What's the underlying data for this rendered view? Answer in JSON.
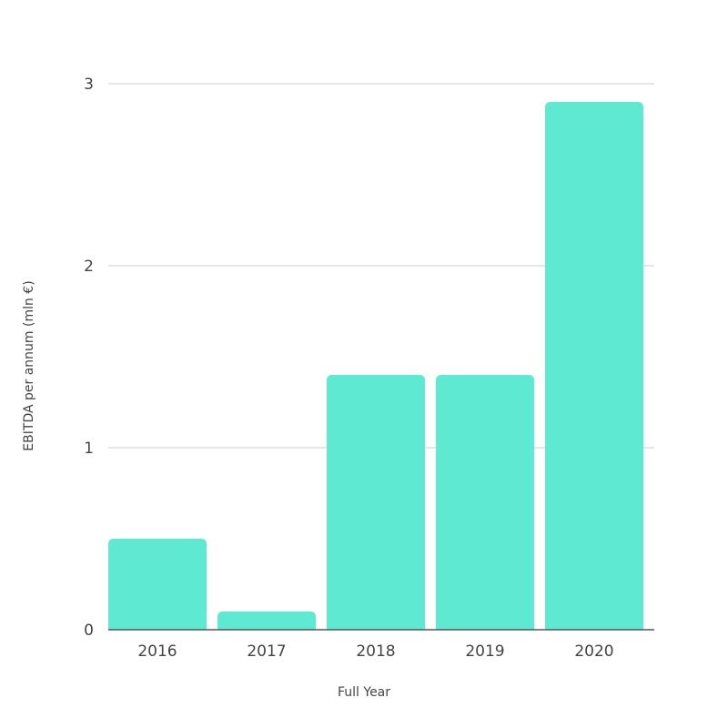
{
  "chart_data": {
    "type": "bar",
    "title": "",
    "xlabel": "Full Year",
    "ylabel": "EBITDA per annum (mln €)",
    "categories": [
      "2016",
      "2017",
      "2018",
      "2019",
      "2020"
    ],
    "values": [
      0.5,
      0.1,
      1.4,
      1.4,
      2.9
    ],
    "ylim": [
      0,
      3
    ],
    "yticks": [
      0,
      1,
      2,
      3
    ],
    "grid": true,
    "legend": "none",
    "bar_color": "#5eead2",
    "grid_color": "#dddddd",
    "baseline_color": "#555555"
  }
}
